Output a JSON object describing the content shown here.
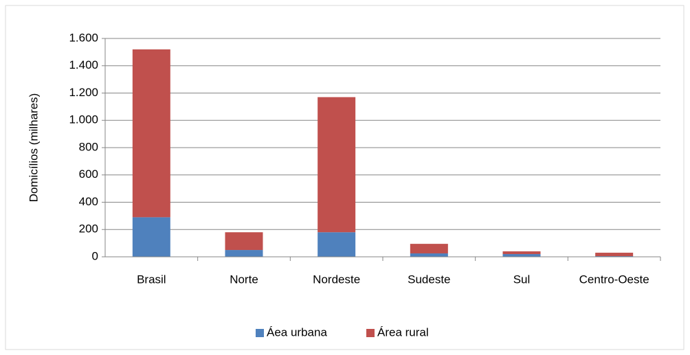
{
  "chart_data": {
    "type": "stacked_bar",
    "y_label": "Domicílios (milhares)",
    "categories": [
      "Brasil",
      "Norte",
      "Nordeste",
      "Sudeste",
      "Sul",
      "Centro-Oeste"
    ],
    "series": [
      {
        "name": "Áea urbana",
        "color": "#4f81bd",
        "values": [
          290,
          50,
          180,
          25,
          20,
          5
        ]
      },
      {
        "name": "Área rural",
        "color": "#c0504d",
        "values": [
          1230,
          130,
          990,
          70,
          20,
          25
        ]
      }
    ],
    "ylim": [
      0,
      1600
    ],
    "yticks": [
      0,
      200,
      400,
      600,
      800,
      {
        "value": 1000,
        "label": "1.000"
      },
      {
        "value": 1200,
        "label": "1.200"
      },
      {
        "value": 1400,
        "label": "1.400"
      },
      {
        "value": 1600,
        "label": "1.600"
      }
    ],
    "grid": true,
    "legend": "bottom"
  }
}
